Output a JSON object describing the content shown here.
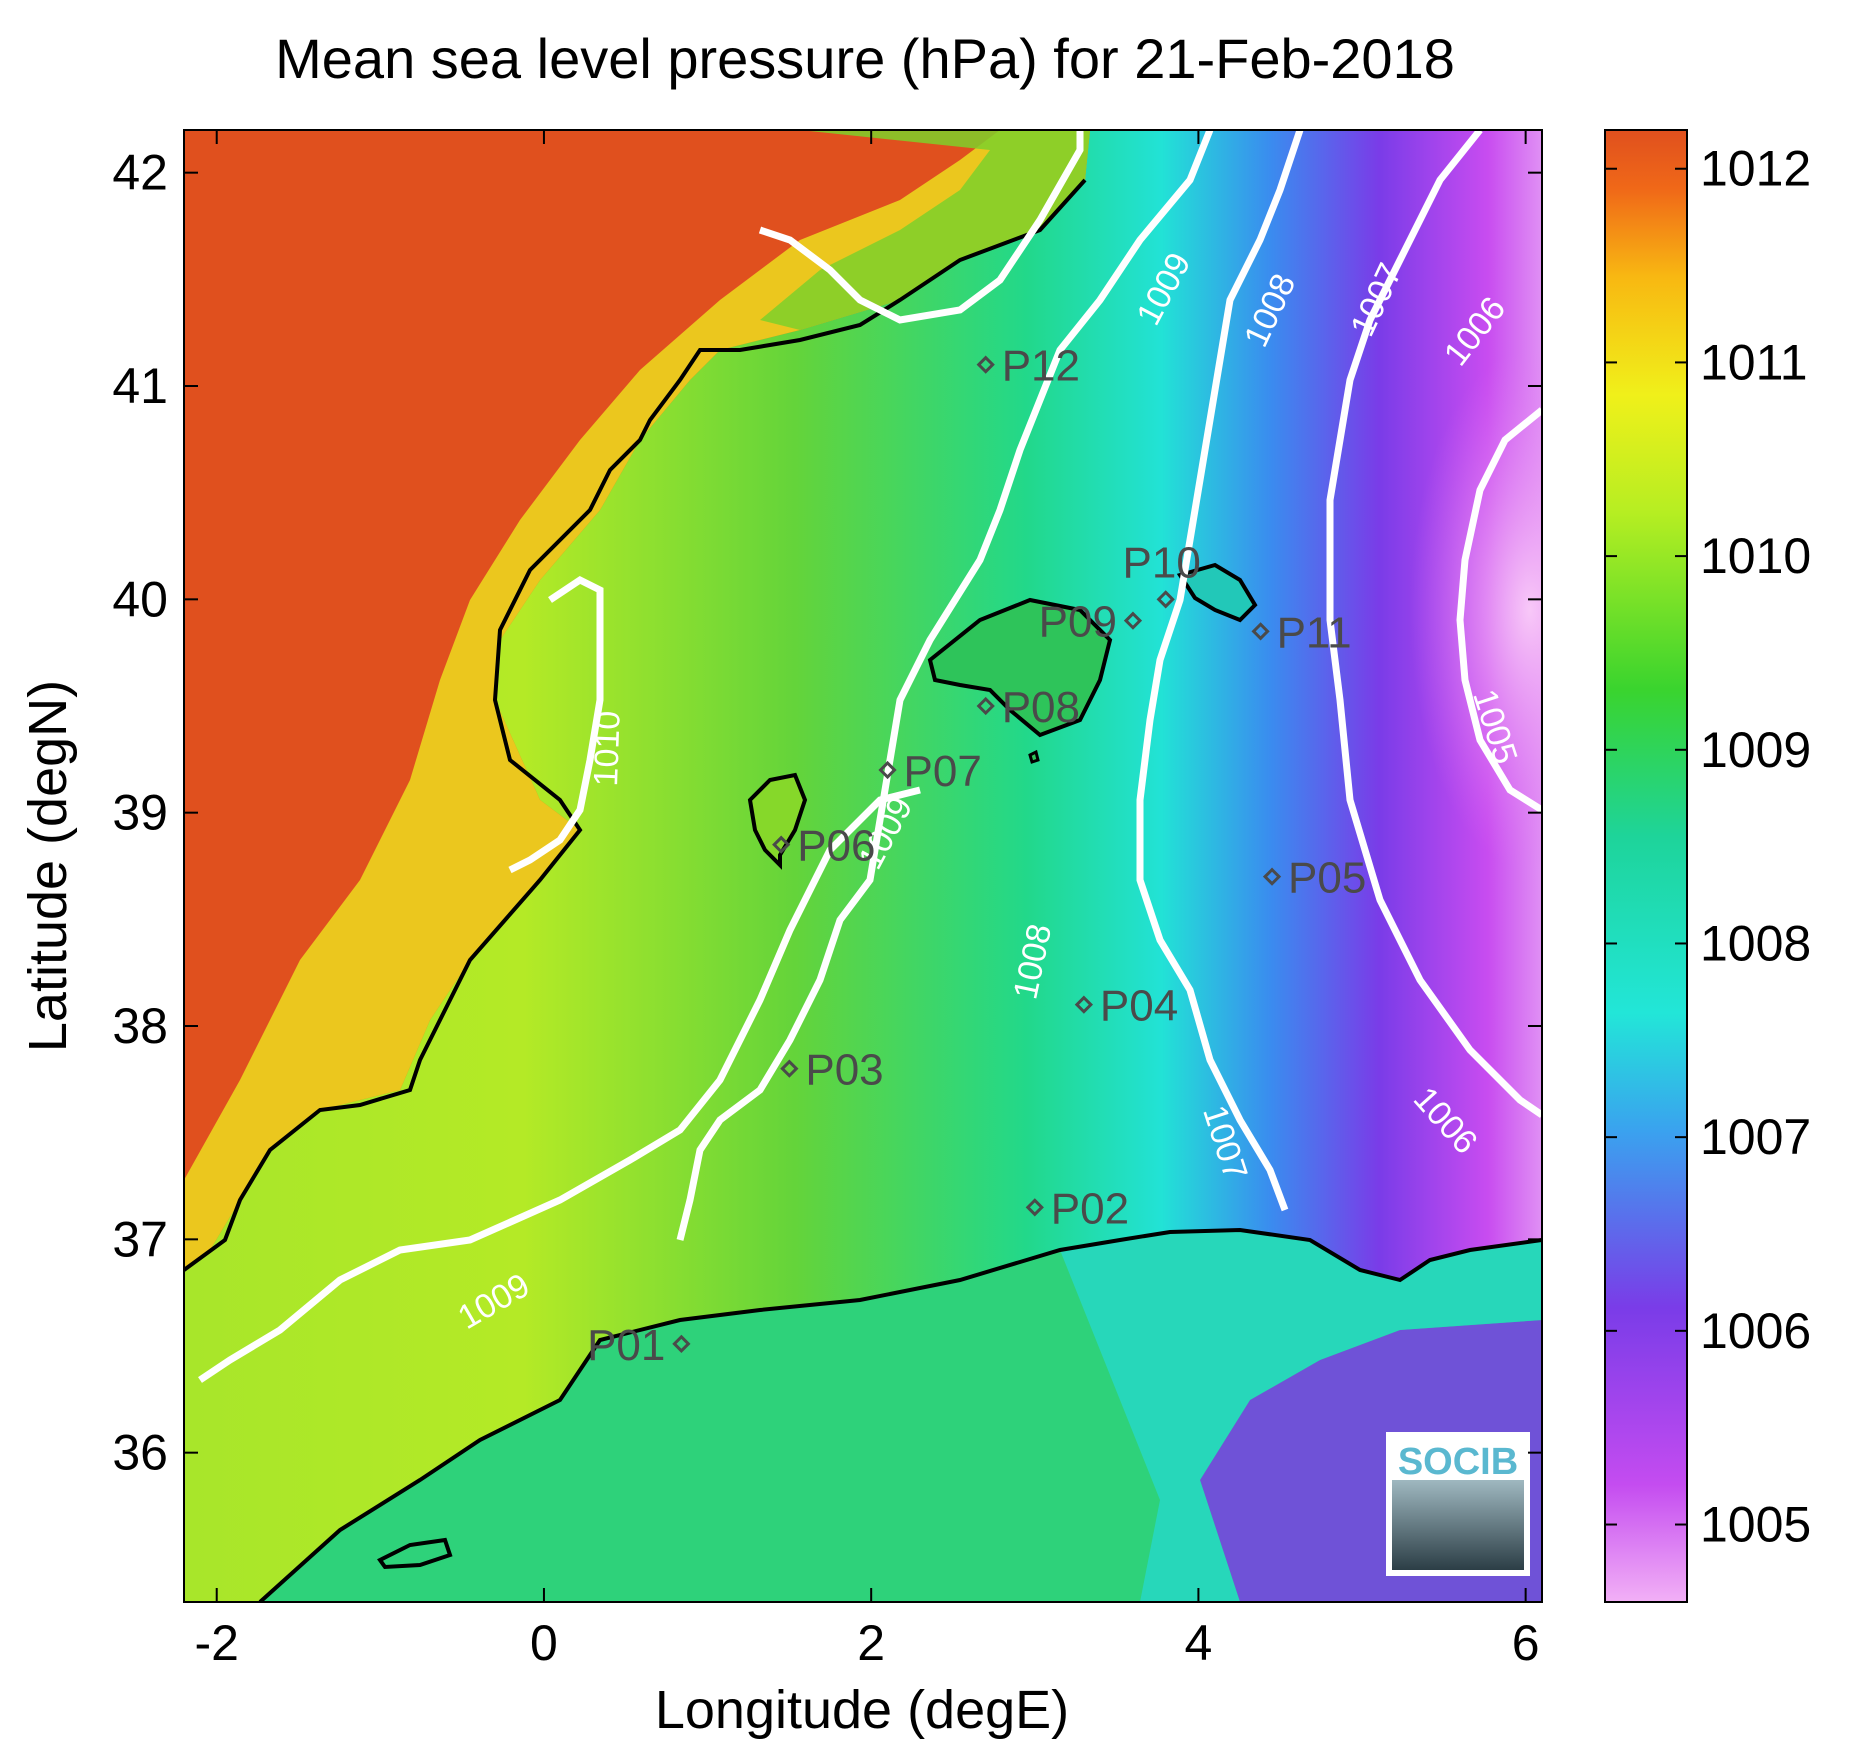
{
  "title": "Mean sea level pressure (hPa) for 21-Feb-2018",
  "xlabel": "Longitude (degE)",
  "ylabel": "Latitude (degN)",
  "x_ticks": [
    "-2",
    "0",
    "2",
    "4",
    "6"
  ],
  "y_ticks": [
    "36",
    "37",
    "38",
    "39",
    "40",
    "41",
    "42"
  ],
  "colorbar": {
    "ticks": [
      "1005",
      "1006",
      "1007",
      "1008",
      "1009",
      "1010",
      "1011",
      "1012"
    ],
    "colors": [
      "#f2b0f6",
      "#c44cf0",
      "#7a3ce8",
      "#3aa2ef",
      "#22e6d8",
      "#1ed49a",
      "#3ad42e",
      "#b6ee22",
      "#f0f01a",
      "#f8b812",
      "#f06818",
      "#e0501e"
    ]
  },
  "logo": {
    "text": "SOCIB"
  },
  "map": {
    "lon_range": [
      -2.2,
      6.1
    ],
    "lat_range": [
      35.3,
      42.2
    ],
    "land_color": "#e0501e",
    "coastline_color": "#000000",
    "contour_color": "#ffffff"
  },
  "contour_labels": [
    {
      "text": "1009",
      "lon": 3.8,
      "lat": 41.45,
      "angle": -62
    },
    {
      "text": "1008",
      "lon": 4.45,
      "lat": 41.35,
      "angle": -65
    },
    {
      "text": "1007",
      "lon": 5.1,
      "lat": 41.4,
      "angle": -65
    },
    {
      "text": "1006",
      "lon": 5.7,
      "lat": 41.25,
      "angle": -52
    },
    {
      "text": "1010",
      "lon": 0.4,
      "lat": 39.3,
      "angle": -88
    },
    {
      "text": "1009",
      "lon": 2.1,
      "lat": 38.9,
      "angle": -62
    },
    {
      "text": "1008",
      "lon": 3.0,
      "lat": 38.3,
      "angle": -78
    },
    {
      "text": "1007",
      "lon": 4.15,
      "lat": 37.45,
      "angle": 72
    },
    {
      "text": "1006",
      "lon": 5.5,
      "lat": 37.55,
      "angle": 48
    },
    {
      "text": "1005",
      "lon": 5.8,
      "lat": 39.4,
      "angle": 72
    },
    {
      "text": "1009",
      "lon": -0.3,
      "lat": 36.7,
      "angle": -30
    }
  ],
  "stations": [
    {
      "name": "P01",
      "lon": 0.84,
      "lat": 36.51,
      "label_side": "left"
    },
    {
      "name": "P02",
      "lon": 3.0,
      "lat": 37.15,
      "label_side": "right"
    },
    {
      "name": "P03",
      "lon": 1.5,
      "lat": 37.8,
      "label_side": "right"
    },
    {
      "name": "P04",
      "lon": 3.3,
      "lat": 38.1,
      "label_side": "right"
    },
    {
      "name": "P05",
      "lon": 4.45,
      "lat": 38.7,
      "label_side": "right"
    },
    {
      "name": "P06",
      "lon": 1.45,
      "lat": 38.85,
      "label_side": "right"
    },
    {
      "name": "P07",
      "lon": 2.1,
      "lat": 39.2,
      "label_side": "right"
    },
    {
      "name": "P08",
      "lon": 2.7,
      "lat": 39.5,
      "label_side": "right"
    },
    {
      "name": "P09",
      "lon": 3.6,
      "lat": 39.9,
      "label_side": "left"
    },
    {
      "name": "P10",
      "lon": 3.8,
      "lat": 40.0,
      "label_side": "above"
    },
    {
      "name": "P11",
      "lon": 4.38,
      "lat": 39.85,
      "label_side": "right"
    },
    {
      "name": "P12",
      "lon": 2.7,
      "lat": 41.1,
      "label_side": "right"
    }
  ]
}
